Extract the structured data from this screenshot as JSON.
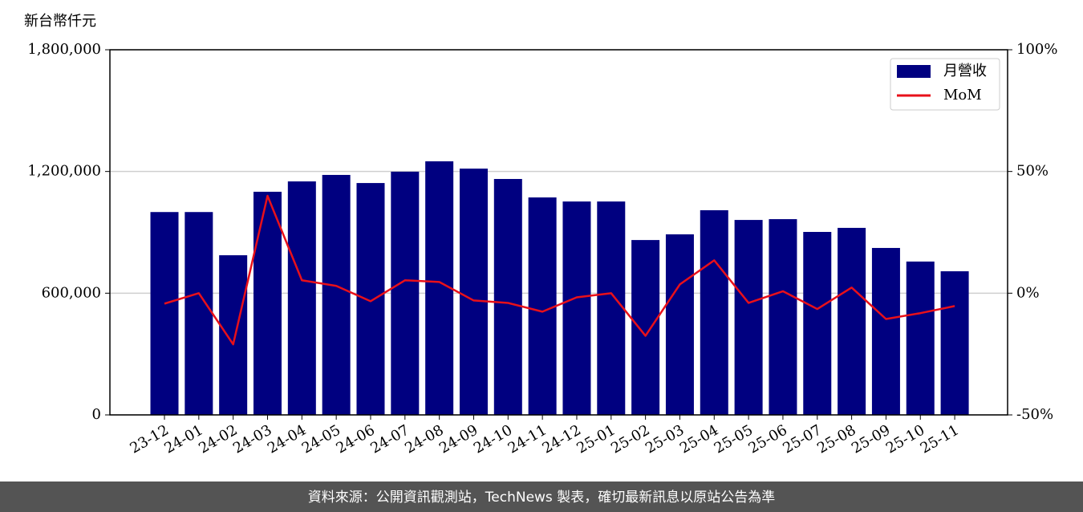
{
  "chart_data": {
    "type": "bar",
    "y_label": "新台幣仟元",
    "categories": [
      "23-12",
      "24-01",
      "24-02",
      "24-03",
      "24-04",
      "24-05",
      "24-06",
      "24-07",
      "24-08",
      "24-09",
      "24-10",
      "24-11",
      "24-12",
      "25-01",
      "25-02",
      "25-03",
      "25-04",
      "25-05",
      "25-06",
      "25-07",
      "25-08",
      "25-09",
      "25-10",
      "25-11"
    ],
    "series": [
      {
        "name": "月營收",
        "type": "bar",
        "color": "#000080",
        "values": [
          1000000,
          1000000,
          787000,
          1100000,
          1151000,
          1183000,
          1143000,
          1199000,
          1250000,
          1214000,
          1163000,
          1072000,
          1052000,
          1052000,
          862000,
          890000,
          1009000,
          961000,
          965000,
          902000,
          922000,
          823000,
          756000,
          708000
        ]
      },
      {
        "name": "MoM",
        "type": "line",
        "color": "#e8101a",
        "axis": "y2",
        "values": [
          -4.3,
          0,
          -21,
          40,
          5.3,
          3,
          -3.3,
          5.3,
          4.6,
          -3,
          -4,
          -7.6,
          -1.7,
          0,
          -17.5,
          3.6,
          13.5,
          -4,
          0.8,
          -6.5,
          2.3,
          -10.6,
          -8.2,
          -5.3
        ]
      }
    ],
    "ylim": [
      0,
      1800000
    ],
    "yticks": [
      0,
      {
        "value": 600000,
        "label": "600,000"
      },
      {
        "value": 1200000,
        "label": "1,200,000"
      },
      {
        "value": 1800000,
        "label": "1,800,000"
      }
    ],
    "y2lim": [
      -50,
      100
    ],
    "y2ticks": [
      {
        "value": -50,
        "label": "-50%"
      },
      {
        "value": 0,
        "label": "0%"
      },
      {
        "value": 50,
        "label": "50%"
      },
      {
        "value": 100,
        "label": "100%"
      }
    ],
    "grid": true,
    "legend": "upper right",
    "source": "資料來源：公開資訊觀測站，TechNews 製表，確切最新訊息以原站公告為準"
  }
}
